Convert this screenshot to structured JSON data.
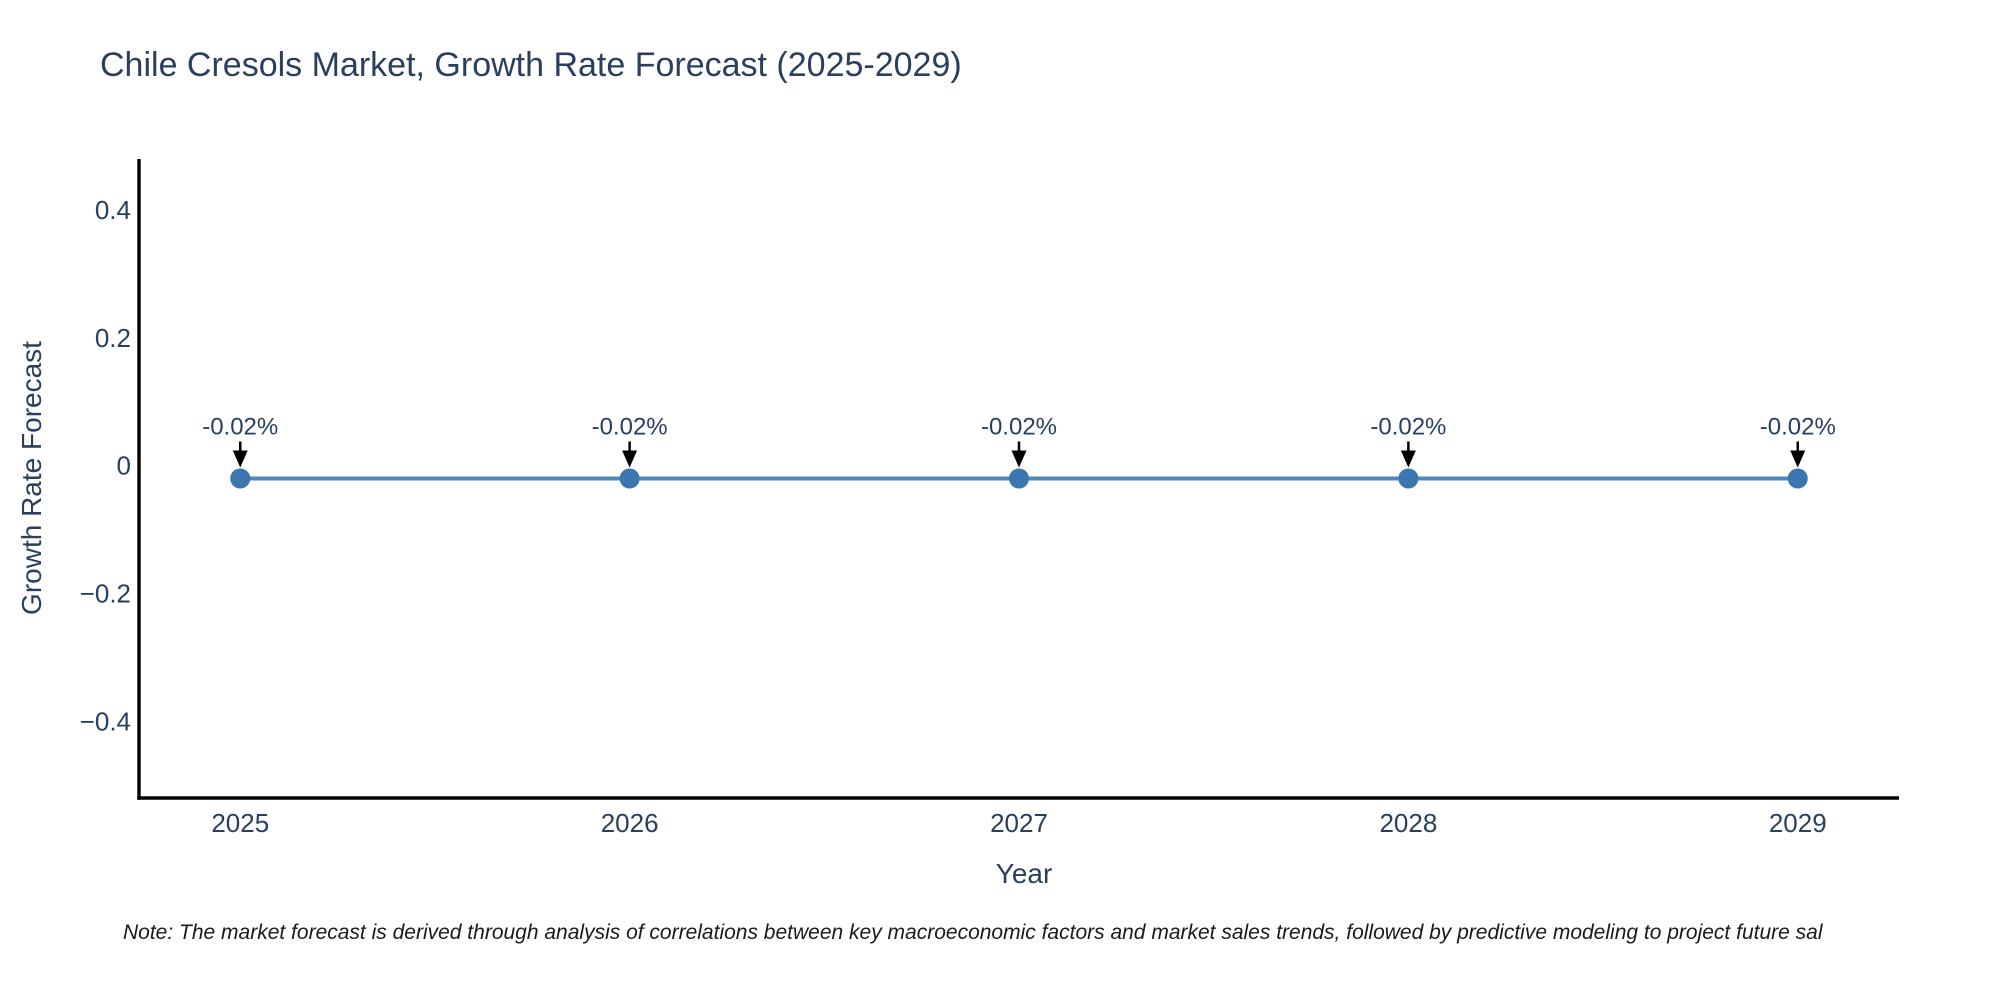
{
  "chart_data": {
    "type": "line",
    "title": "Chile Cresols Market, Growth Rate Forecast (2025-2029)",
    "xlabel": "Year",
    "ylabel": "Growth Rate Forecast",
    "x": [
      2025,
      2026,
      2027,
      2028,
      2029
    ],
    "x_tick_labels": [
      "2025",
      "2026",
      "2027",
      "2028",
      "2029"
    ],
    "series": [
      {
        "name": "Growth Rate Forecast",
        "values": [
          -0.02,
          -0.02,
          -0.02,
          -0.02,
          -0.02
        ]
      }
    ],
    "point_labels": [
      "-0.02%",
      "-0.02%",
      "-0.02%",
      "-0.02%",
      "-0.02%"
    ],
    "y_ticks": [
      0.4,
      0.2,
      0,
      -0.2,
      -0.4
    ],
    "y_tick_labels": [
      "0.4",
      "0.2",
      "0",
      "−0.2",
      "−0.4"
    ],
    "xlim": [
      2024.74,
      2029.26
    ],
    "ylim": [
      -0.52,
      0.48
    ],
    "grid": false,
    "legend": "none",
    "colors": {
      "line": "#4e87bd",
      "marker": "#3b76b1",
      "axis": "#000000",
      "text": "#2a3f5f",
      "annotation_arrow": "#000000"
    }
  },
  "note": "Note: The market forecast is derived through analysis of correlations between key macroeconomic factors and market sales trends, followed by predictive modeling to project future sal"
}
